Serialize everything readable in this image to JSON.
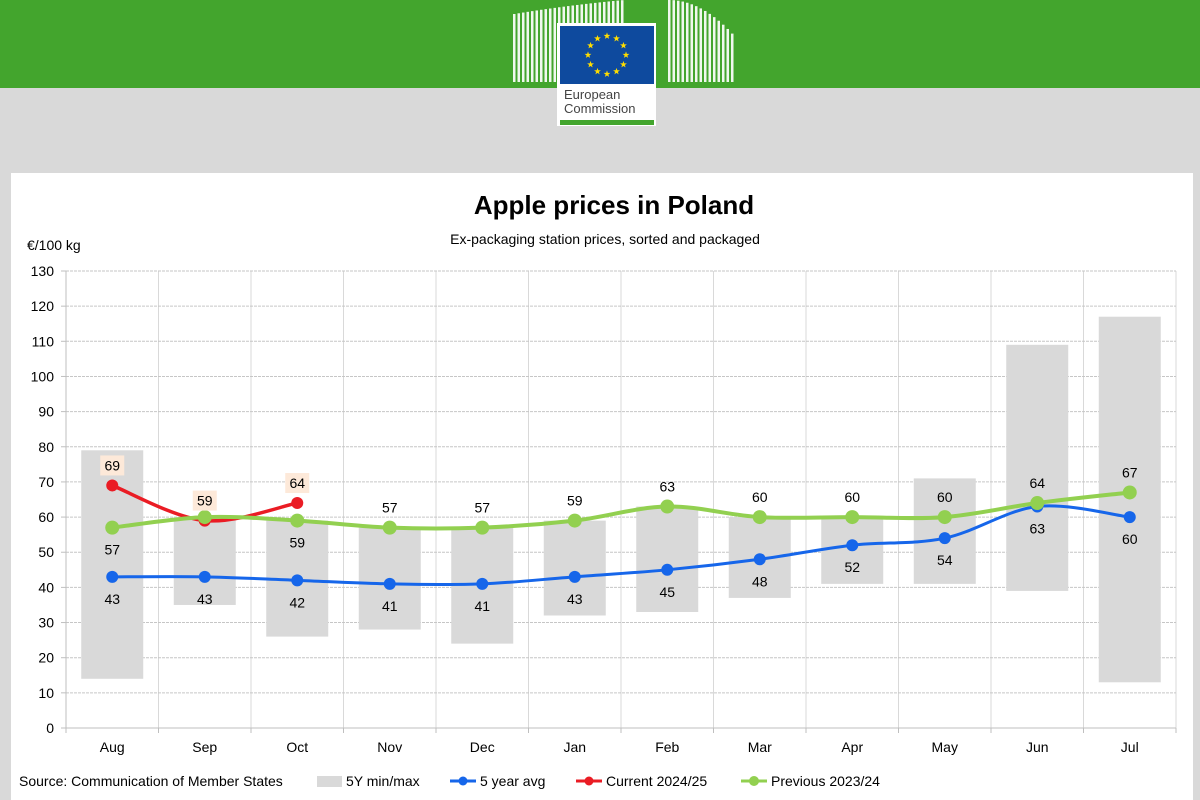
{
  "colors": {
    "header_green": "#43a52d",
    "flag_blue": "#0e4a9e",
    "star_yellow": "#ffdd00",
    "range_bar": "#d9d9d9",
    "label_highlight": "#fde9d9"
  },
  "logo": {
    "line1": "European",
    "line2": "Commission"
  },
  "chart_data": {
    "type": "line",
    "title": "Apple prices in Poland",
    "subtitle": "Ex-packaging station prices, sorted and packaged",
    "ylabel": "€/100 kg",
    "ylim": [
      0,
      130
    ],
    "yticks": [
      0,
      10,
      20,
      30,
      40,
      50,
      60,
      70,
      80,
      90,
      100,
      110,
      120,
      130
    ],
    "categories": [
      "Aug",
      "Sep",
      "Oct",
      "Nov",
      "Dec",
      "Jan",
      "Feb",
      "Mar",
      "Apr",
      "May",
      "Jun",
      "Jul"
    ],
    "grid": true,
    "legend_placement": "bottom",
    "range": {
      "name": "5Y min/max",
      "min": [
        14,
        35,
        26,
        28,
        24,
        32,
        33,
        37,
        41,
        41,
        39,
        13
      ],
      "max": [
        79,
        60,
        59,
        57,
        57,
        59,
        63,
        60,
        60,
        71,
        109,
        117
      ]
    },
    "series": [
      {
        "name": "5 year avg",
        "color": "#1666ea",
        "values": [
          43,
          43,
          42,
          41,
          41,
          43,
          45,
          48,
          52,
          54,
          63,
          60
        ],
        "labels": [
          "43",
          "43",
          "42",
          "41",
          "41",
          "43",
          "45",
          "48",
          "52",
          "54",
          "63",
          "60"
        ]
      },
      {
        "name": "Current 2024/25",
        "color": "#ea1c24",
        "values": [
          69,
          59,
          64,
          null,
          null,
          null,
          null,
          null,
          null,
          null,
          null,
          null
        ],
        "labels": [
          "69",
          "59",
          "64",
          null,
          null,
          null,
          null,
          null,
          null,
          null,
          null,
          null
        ]
      },
      {
        "name": "Previous 2023/24",
        "color": "#92d050",
        "values": [
          57,
          60,
          59,
          57,
          57,
          59,
          63,
          60,
          60,
          60,
          64,
          67
        ],
        "labels": [
          "57",
          null,
          "59",
          "57",
          "57",
          "59",
          "63",
          "60",
          "60",
          "60",
          "64",
          "67"
        ]
      }
    ]
  },
  "footer": {
    "source": "Source: Communication of Member States"
  }
}
